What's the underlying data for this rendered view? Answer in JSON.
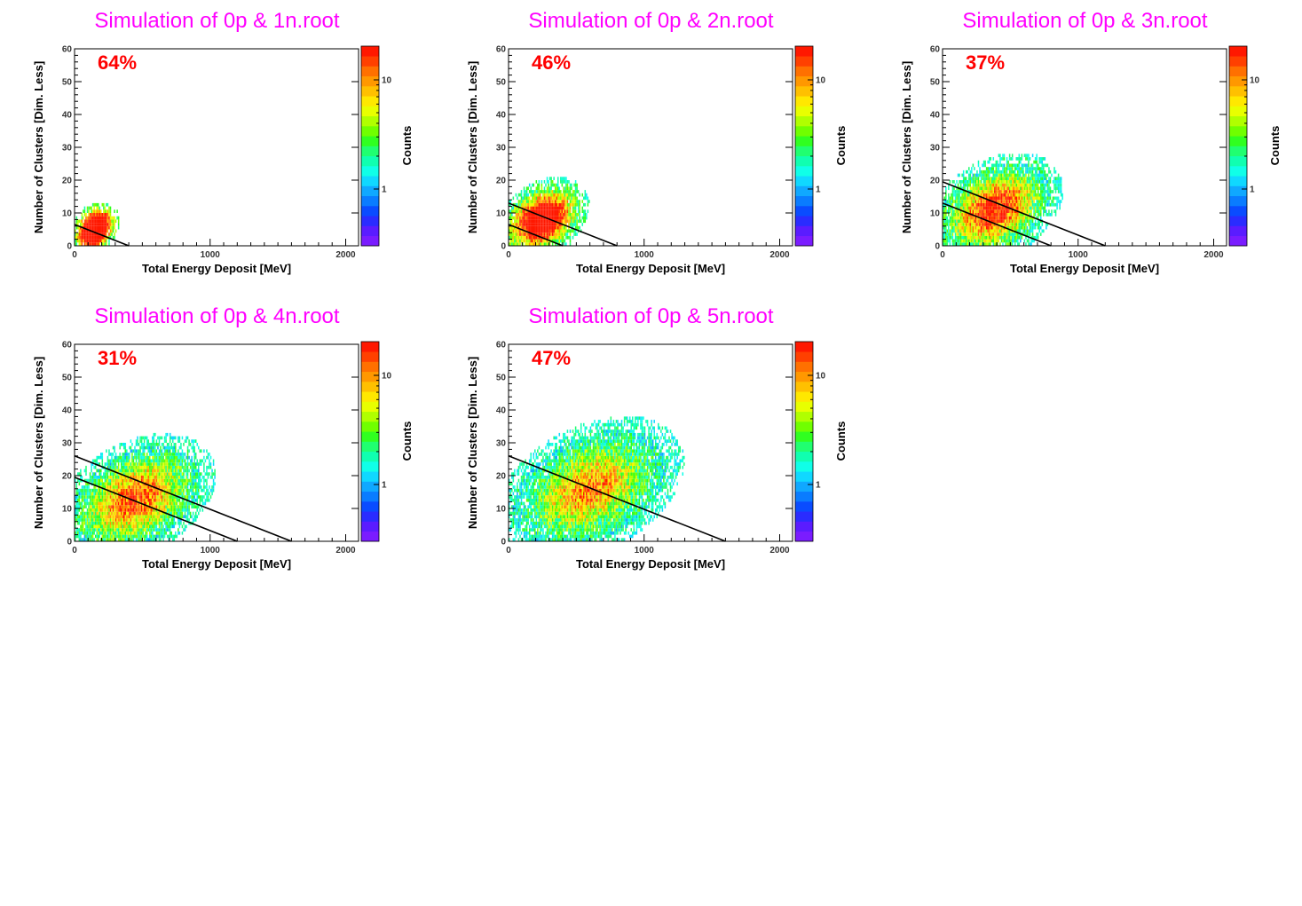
{
  "colors": {
    "title": "#ff00ff",
    "percent": "#ff0000",
    "palette": [
      "#7a1cff",
      "#5a1cff",
      "#2a2cff",
      "#0a4cff",
      "#0a7cff",
      "#10a8ff",
      "#10d8ff",
      "#10ffe8",
      "#10ffb0",
      "#20ff70",
      "#30ff20",
      "#70ff00",
      "#b0ff00",
      "#e8ff00",
      "#ffe800",
      "#ffc000",
      "#ff9800",
      "#ff7000",
      "#ff4000",
      "#ff1800"
    ]
  },
  "panels": [
    {
      "title": "Simulation of 0p & 1n.root",
      "percent": "64%",
      "chart_data": {
        "type": "heatmap",
        "xlabel": "Total Energy Deposit [MeV]",
        "ylabel": "Number of Clusters [Dim. Less]",
        "zlabel": "Counts",
        "xlim": [
          0,
          2100
        ],
        "ylim": [
          0,
          60
        ],
        "xticks": [
          0,
          1000,
          2000
        ],
        "yticks": [
          0,
          10,
          20,
          30,
          40,
          50,
          60
        ],
        "zticks": [
          1,
          10
        ],
        "z_scale": "log",
        "blob": {
          "cx": 150,
          "cy": 5,
          "sx": 90,
          "sy": 4,
          "sat": 1.8,
          "xmin": 0,
          "xmax": 420,
          "ymin": 0,
          "ymax": 18
        },
        "cut_lines": [
          {
            "x0": 0,
            "y0": 6.5,
            "x1": 400,
            "y1": 0
          }
        ]
      }
    },
    {
      "title": "Simulation of 0p & 2n.root",
      "percent": "46%",
      "chart_data": {
        "type": "heatmap",
        "xlabel": "Total Energy Deposit [MeV]",
        "ylabel": "Number of Clusters [Dim. Less]",
        "zlabel": "Counts",
        "xlim": [
          0,
          2100
        ],
        "ylim": [
          0,
          60
        ],
        "xticks": [
          0,
          1000,
          2000
        ],
        "yticks": [
          0,
          10,
          20,
          30,
          40,
          50,
          60
        ],
        "zticks": [
          1,
          10
        ],
        "z_scale": "log",
        "blob": {
          "cx": 250,
          "cy": 8,
          "sx": 170,
          "sy": 6,
          "sat": 1.3,
          "xmin": 0,
          "xmax": 700,
          "ymin": 0,
          "ymax": 26
        },
        "cut_lines": [
          {
            "x0": 0,
            "y0": 6.5,
            "x1": 400,
            "y1": 0
          },
          {
            "x0": 0,
            "y0": 13,
            "x1": 800,
            "y1": 0
          }
        ]
      }
    },
    {
      "title": "Simulation of 0p & 3n.root",
      "percent": "37%",
      "chart_data": {
        "type": "heatmap",
        "xlabel": "Total Energy Deposit [MeV]",
        "ylabel": "Number of Clusters [Dim. Less]",
        "zlabel": "Counts",
        "xlim": [
          0,
          2100
        ],
        "ylim": [
          0,
          60
        ],
        "xticks": [
          0,
          1000,
          2000
        ],
        "yticks": [
          0,
          10,
          20,
          30,
          40,
          50,
          60
        ],
        "zticks": [
          1,
          10
        ],
        "z_scale": "log",
        "blob": {
          "cx": 380,
          "cy": 11,
          "sx": 250,
          "sy": 8,
          "sat": 0.9,
          "xmin": 0,
          "xmax": 1000,
          "ymin": 0,
          "ymax": 35
        },
        "cut_lines": [
          {
            "x0": 0,
            "y0": 13,
            "x1": 800,
            "y1": 0
          },
          {
            "x0": 0,
            "y0": 19.5,
            "x1": 1200,
            "y1": 0
          }
        ]
      }
    },
    {
      "title": "Simulation of 0p & 4n.root",
      "percent": "31%",
      "chart_data": {
        "type": "heatmap",
        "xlabel": "Total Energy Deposit [MeV]",
        "ylabel": "Number of Clusters [Dim. Less]",
        "zlabel": "Counts",
        "xlim": [
          0,
          2100
        ],
        "ylim": [
          0,
          60
        ],
        "xticks": [
          0,
          1000,
          2000
        ],
        "yticks": [
          0,
          10,
          20,
          30,
          40,
          50,
          60
        ],
        "zticks": [
          1,
          10
        ],
        "z_scale": "log",
        "blob": {
          "cx": 450,
          "cy": 13,
          "sx": 290,
          "sy": 9,
          "sat": 0.8,
          "xmin": 0,
          "xmax": 1280,
          "ymin": 0,
          "ymax": 38
        },
        "cut_lines": [
          {
            "x0": 0,
            "y0": 19.5,
            "x1": 1200,
            "y1": 0
          },
          {
            "x0": 0,
            "y0": 26,
            "x1": 1600,
            "y1": 0
          }
        ]
      }
    },
    {
      "title": "Simulation of 0p & 5n.root",
      "percent": "47%",
      "chart_data": {
        "type": "heatmap",
        "xlabel": "Total Energy Deposit [MeV]",
        "ylabel": "Number of Clusters [Dim. Less]",
        "zlabel": "Counts",
        "xlim": [
          0,
          2100
        ],
        "ylim": [
          0,
          60
        ],
        "xticks": [
          0,
          1000,
          2000
        ],
        "yticks": [
          0,
          10,
          20,
          30,
          40,
          50,
          60
        ],
        "zticks": [
          1,
          10
        ],
        "z_scale": "log",
        "blob": {
          "cx": 600,
          "cy": 16,
          "sx": 340,
          "sy": 10,
          "sat": 0.7,
          "xmin": 0,
          "xmax": 1420,
          "ymin": 0,
          "ymax": 49
        },
        "cut_lines": [
          {
            "x0": 0,
            "y0": 26,
            "x1": 1600,
            "y1": 0
          }
        ]
      }
    }
  ]
}
